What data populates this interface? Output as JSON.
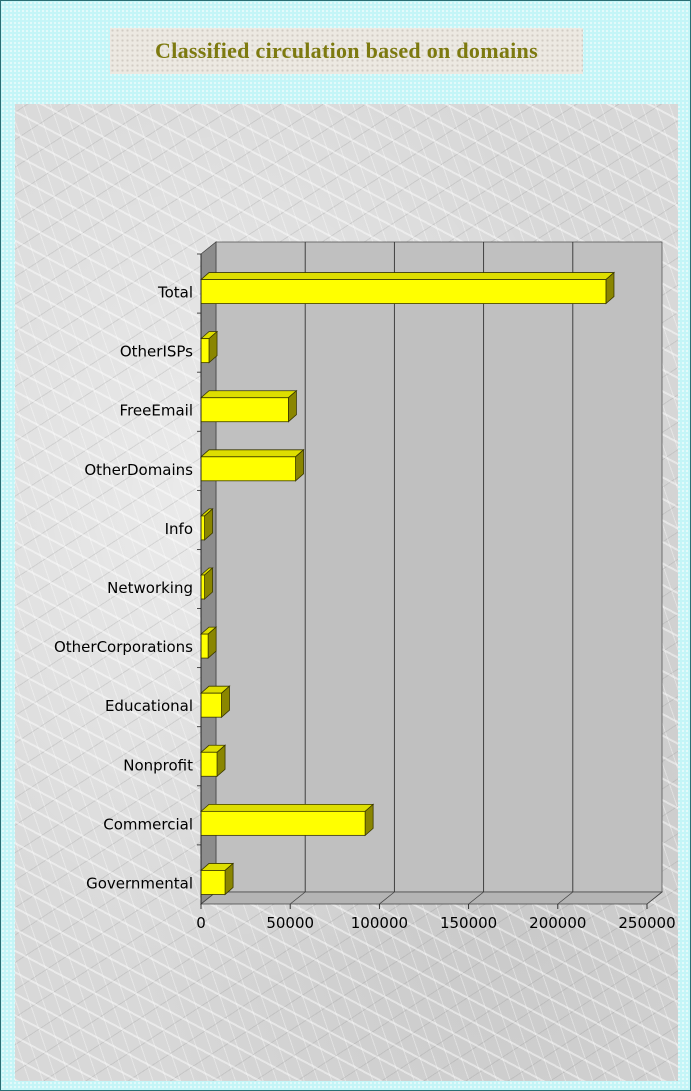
{
  "chart_data": {
    "type": "bar",
    "orientation": "horizontal",
    "title": "Classified circulation based on domains",
    "categories": [
      "Total",
      "OtherISPs",
      "FreeEmail",
      "OtherDomains",
      "Info",
      "Networking",
      "OtherCorporations",
      "Educational",
      "Nonprofit",
      "Commercial",
      "Governmental"
    ],
    "values": [
      227000,
      4500,
      49000,
      53000,
      2000,
      2000,
      4000,
      11500,
      9000,
      92000,
      13500
    ],
    "xlim": [
      0,
      250000
    ],
    "x_ticks": [
      "0",
      "50000",
      "100000",
      "150000",
      "200000",
      "250000"
    ],
    "grid": true,
    "colors": {
      "bar": "#ffff00",
      "bar_top": "#dede00",
      "bar_side": "#8a8600",
      "wall": "#c0c0c0",
      "floor": "#8c8c8c",
      "title": "#7d7a10"
    }
  }
}
